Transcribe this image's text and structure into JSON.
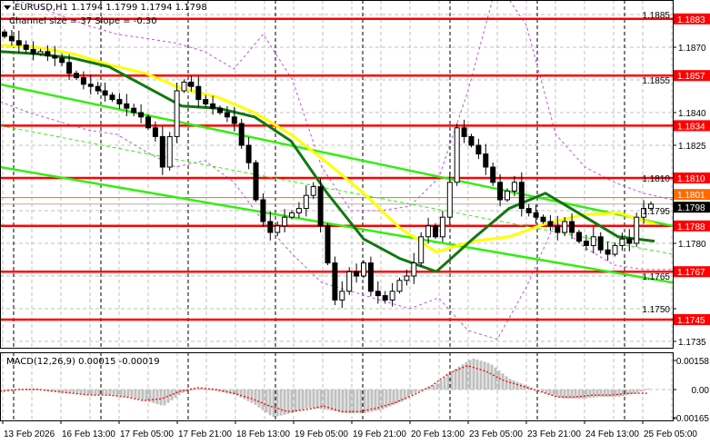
{
  "header": {
    "symbol_line": "EURUSD,H1  1.1794 1.1799 1.1794 1.1798",
    "channel_line": "Channel size = 37 Slope = -0.30",
    "menu_icon": "triangle-down-icon"
  },
  "colors": {
    "level": "#ff0000",
    "orange_level": "#ff6a00",
    "channel": "#33ee11",
    "fast_ma": "#117711",
    "slow_ma": "#ffff00",
    "bands": "#bb55dd",
    "histogram": "#c0c0c0",
    "signal": "#ff0000"
  },
  "chart_data": [
    {
      "type": "candlestick",
      "title": "EURUSD,H1",
      "ylim": [
        1.1729,
        1.189
      ],
      "y_ticks": [
        "1.1885",
        "1.1870",
        "1.1855",
        "1.1840",
        "1.1825",
        "1.1810",
        "1.1795",
        "1.1780",
        "1.1765",
        "1.1750",
        "1.1735"
      ],
      "x_ticks": [
        "13 Feb 2026",
        "16 Feb 13:00",
        "17 Feb 05:00",
        "17 Feb 21:00",
        "18 Feb 13:00",
        "19 Feb 05:00",
        "19 Feb 21:00",
        "20 Feb 13:00",
        "23 Feb 05:00",
        "23 Feb 21:00",
        "24 Feb 13:00",
        "25 Feb 05:00"
      ],
      "grid": true,
      "closes": [
        1.1875,
        1.1873,
        1.1871,
        1.1869,
        1.1867,
        1.1868,
        1.1866,
        1.1865,
        1.1863,
        1.1858,
        1.1856,
        1.1853,
        1.1852,
        1.185,
        1.1848,
        1.1846,
        1.1844,
        1.1842,
        1.184,
        1.1838,
        1.1833,
        1.1829,
        1.1815,
        1.1829,
        1.185,
        1.1854,
        1.1852,
        1.1846,
        1.1844,
        1.1842,
        1.184,
        1.1838,
        1.1835,
        1.1825,
        1.1817,
        1.18,
        1.179,
        1.1785,
        1.1788,
        1.1792,
        1.1794,
        1.1796,
        1.1802,
        1.1806,
        1.1788,
        1.1771,
        1.1754,
        1.1758,
        1.1767,
        1.1765,
        1.1771,
        1.1758,
        1.1756,
        1.1754,
        1.1758,
        1.1763,
        1.1765,
        1.1771,
        1.1783,
        1.1788,
        1.1783,
        1.1792,
        1.1808,
        1.1833,
        1.1829,
        1.1825,
        1.1821,
        1.1815,
        1.1808,
        1.18,
        1.1804,
        1.1808,
        1.1796,
        1.1794,
        1.1792,
        1.179,
        1.1788,
        1.1785,
        1.179,
        1.1785,
        1.1781,
        1.1779,
        1.1783,
        1.1777,
        1.1775,
        1.1779,
        1.1782,
        1.178,
        1.1792,
        1.1796,
        1.1798
      ],
      "levels": [
        {
          "label": "1.1883",
          "value": 1.1883,
          "kind": "level"
        },
        {
          "label": "1.1857",
          "value": 1.1857,
          "kind": "level"
        },
        {
          "label": "1.1834",
          "value": 1.1834,
          "kind": "level"
        },
        {
          "label": "1.1810",
          "value": 1.181,
          "kind": "level"
        },
        {
          "label": "1.1801",
          "value": 1.1801,
          "kind": "orange"
        },
        {
          "label": "1.1798",
          "value": 1.1798,
          "kind": "current"
        },
        {
          "label": "1.1788",
          "value": 1.1788,
          "kind": "level"
        },
        {
          "label": "1.1767",
          "value": 1.1767,
          "kind": "level"
        },
        {
          "label": "1.1745",
          "value": 1.1745,
          "kind": "level"
        }
      ],
      "channel": {
        "upper": [
          1.1853,
          1.1788
        ],
        "middle": [
          1.1834,
          1.1775
        ],
        "lower": [
          1.1815,
          1.1762
        ]
      },
      "slow_ma": [
        1.1871,
        1.187,
        1.1867,
        1.1862,
        1.1858,
        1.1851,
        1.1847,
        1.184,
        1.183,
        1.1817,
        1.1803,
        1.1787,
        1.1776,
        1.1781,
        1.1783,
        1.1789,
        1.1793,
        1.1794,
        1.1789
      ],
      "fast_ma": [
        1.1868,
        1.1867,
        1.1865,
        1.1861,
        1.1852,
        1.1843,
        1.1842,
        1.1838,
        1.1827,
        1.1803,
        1.1782,
        1.1773,
        1.1767,
        1.1782,
        1.1796,
        1.1803,
        1.1793,
        1.1783,
        1.1781
      ],
      "bands_upper": [
        1.1893,
        1.189,
        1.1885,
        1.188,
        1.1876,
        1.1874,
        1.1872,
        1.1868,
        1.186,
        1.1876,
        1.1855,
        1.1815,
        1.1795,
        1.1795,
        1.1797,
        1.181,
        1.185,
        1.19,
        1.188,
        1.183,
        1.1815,
        1.1808,
        1.1803,
        1.18
      ],
      "bands_lower": [
        1.1845,
        1.184,
        1.1836,
        1.1832,
        1.183,
        1.1822,
        1.1815,
        1.1818,
        1.1808,
        1.179,
        1.1775,
        1.1762,
        1.1758,
        1.1754,
        1.175,
        1.1755,
        1.174,
        1.1736,
        1.176,
        1.179,
        1.1778,
        1.177,
        1.1768,
        1.1768
      ]
    },
    {
      "type": "bar",
      "title": "MACD(12,26,9) 0.00015 -0.00019",
      "ylim": [
        -0.00165,
        0.00158
      ],
      "y_ticks": [
        "0.00158",
        "0.00",
        "-0.00165"
      ],
      "histogram": [
        2e-05,
        1e-05,
        0,
        -0.0001,
        -0.0002,
        -0.0003,
        -0.0003,
        -0.0004,
        -0.0006,
        -0.0009,
        -0.0002,
        0.0001,
        -0.0001,
        -0.0003,
        -0.0008,
        -0.0015,
        -0.0013,
        -0.001,
        -0.0011,
        -0.0013,
        -0.0013,
        -0.0011,
        -0.0007,
        -0.0001,
        0.0003,
        0.0011,
        0.0017,
        0.0014,
        0.0006,
        0.0002,
        -0.0002,
        -0.0005,
        -0.0005,
        -0.0004,
        -0.0004,
        -0.0002,
        0.0002
      ],
      "signal": [
        -0.0001,
        0,
        2e-05,
        -0.0001,
        -0.0002,
        -0.0003,
        -0.0003,
        -0.0004,
        -0.0006,
        -0.0005,
        -0.0001,
        0.0001,
        0,
        -0.0002,
        -0.0005,
        -0.0009,
        -0.0012,
        -0.0011,
        -0.0009,
        -0.0012,
        -0.0012,
        -0.001,
        -0.0007,
        -0.0003,
        0.0002,
        0.0009,
        0.0013,
        0.001,
        0.0005,
        0.0002,
        -0.0001,
        -0.0004,
        -0.0004,
        -0.0003,
        -0.0003,
        -0.0002,
        -0.0002
      ]
    }
  ]
}
